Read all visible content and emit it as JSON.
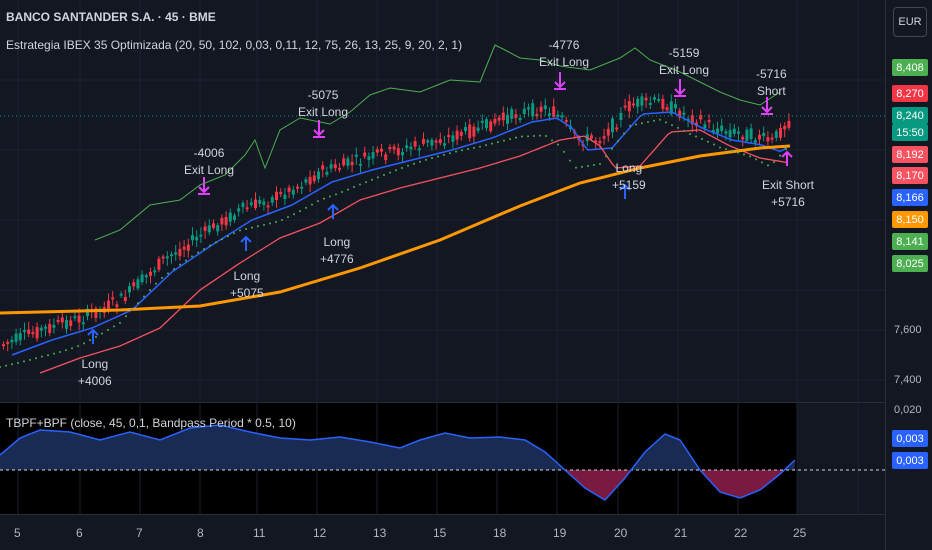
{
  "header": {
    "symbol_line": "BANCO SANTANDER S.A. · 45 · BME",
    "strategy_line": "Estrategia IBEX 35 Optimizada (20, 50, 102, 0,03, 0,11, 12, 75, 26, 13, 25, 9, 20, 2, 1)",
    "oscillator_line": "TBPF+BPF (close, 45, 0,1, Bandpass Period * 0.5, 10)"
  },
  "currency_button": "EUR",
  "price_axis": {
    "labels": [
      "7,600",
      "7,400"
    ],
    "badges": [
      {
        "text": "8,408",
        "color": "#4caf50"
      },
      {
        "text": "8,270",
        "color": "#f23645"
      },
      {
        "text": "8,240",
        "color": "#089981"
      },
      {
        "text": "15:50",
        "color": "#089981"
      },
      {
        "text": "8,192",
        "color": "#f7525f"
      },
      {
        "text": "8,170",
        "color": "#f7525f"
      },
      {
        "text": "8,166",
        "color": "#2962ff"
      },
      {
        "text": "8,150",
        "color": "#ff9800"
      },
      {
        "text": "8,141",
        "color": "#4caf50"
      },
      {
        "text": "8,025",
        "color": "#4caf50"
      }
    ]
  },
  "osc_axis": {
    "label": "0,020",
    "badges": [
      {
        "text": "0,003",
        "color": "#2962ff"
      },
      {
        "text": "0,003",
        "color": "#2962ff"
      }
    ]
  },
  "time_axis": [
    "5",
    "6",
    "7",
    "8",
    "11",
    "12",
    "13",
    "15",
    "18",
    "19",
    "20",
    "21",
    "22",
    "25"
  ],
  "annotations": [
    {
      "lines": [
        "Long",
        "+4006"
      ]
    },
    {
      "lines": [
        "-4006",
        "Exit Long"
      ]
    },
    {
      "lines": [
        "Long",
        "+5075"
      ]
    },
    {
      "lines": [
        "-5075",
        "Exit Long"
      ]
    },
    {
      "lines": [
        "Long",
        "+4776"
      ]
    },
    {
      "lines": [
        "-4776",
        "Exit Long"
      ]
    },
    {
      "lines": [
        "Long",
        "+5159"
      ]
    },
    {
      "lines": [
        "-5159",
        "Exit Long"
      ]
    },
    {
      "lines": [
        "-5716",
        "Short"
      ]
    },
    {
      "lines": [
        "Exit Short",
        "+5716"
      ]
    }
  ],
  "colors": {
    "background": "#131722",
    "up_candle": "#089981",
    "down_candle": "#f23645",
    "ema_fast": "#2962ff",
    "ema_mid": "#f7525f",
    "ema_slow": "#ff9800",
    "upper_band": "#4caf50",
    "long_arrow": "#2962ff",
    "exit_arrow": "#e040fb",
    "osc_line": "#2962ff",
    "osc_pos_fill": "#1c2f5c",
    "osc_neg_fill": "#7a1a40"
  }
}
